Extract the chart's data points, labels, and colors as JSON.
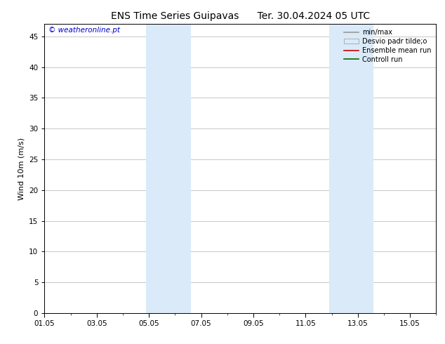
{
  "title": "ENS Time Series Guipavas      Ter. 30.04.2024 05 UTC",
  "ylabel": "Wind 10m (m/s)",
  "watermark": "© weatheronline.pt",
  "watermark_color": "#0000cc",
  "ylim": [
    0,
    47
  ],
  "yticks": [
    0,
    5,
    10,
    15,
    20,
    25,
    30,
    35,
    40,
    45
  ],
  "xtick_labels": [
    "01.05",
    "03.05",
    "05.05",
    "07.05",
    "09.05",
    "11.05",
    "13.05",
    "15.05"
  ],
  "xtick_positions": [
    0,
    2,
    4,
    6,
    8,
    10,
    12,
    14
  ],
  "xlim": [
    0,
    15
  ],
  "shaded_bands": [
    {
      "x_start": 3.9,
      "x_end": 5.6,
      "color": "#daeaf8"
    },
    {
      "x_start": 10.9,
      "x_end": 12.6,
      "color": "#daeaf8"
    }
  ],
  "background_color": "#ffffff",
  "plot_bg_color": "#ffffff",
  "grid_color": "#b0b0b0",
  "legend_items": [
    {
      "label": "min/max",
      "color": "#999999",
      "lw": 1.2,
      "type": "line"
    },
    {
      "label": "Desvio padr tilde;o",
      "facecolor": "#daeaf8",
      "edgecolor": "#999999",
      "type": "patch"
    },
    {
      "label": "Ensemble mean run",
      "color": "#cc0000",
      "lw": 1.2,
      "type": "line"
    },
    {
      "label": "Controll run",
      "color": "#006600",
      "lw": 1.2,
      "type": "line"
    }
  ],
  "title_fontsize": 10,
  "axis_fontsize": 7.5,
  "ylabel_fontsize": 8,
  "legend_fontsize": 7,
  "watermark_fontsize": 7.5
}
